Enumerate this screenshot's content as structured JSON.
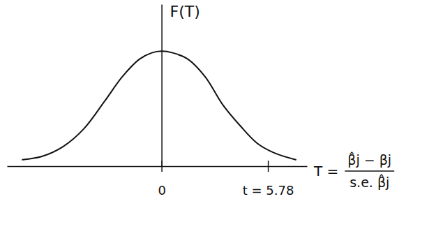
{
  "chart_data": {
    "type": "line",
    "y_label": "F(T)",
    "annotation": {
      "lhs": "T =",
      "numerator": "β̂j − βj",
      "denominator": "s.e. β̂j"
    },
    "x": [
      -7.56,
      -6.5,
      -5.36,
      -4.23,
      -3.1,
      -2.15,
      -1.21,
      -0.53,
      0,
      0.6,
      1.44,
      2.38,
      3.32,
      4.27,
      5.21,
      6.16,
      7.29
    ],
    "values": [
      0.04,
      0.06,
      0.12,
      0.23,
      0.4,
      0.55,
      0.66,
      0.7,
      0.71,
      0.7,
      0.66,
      0.55,
      0.38,
      0.25,
      0.14,
      0.08,
      0.04
    ],
    "color": "#111111",
    "xlim": [
      -8.4,
      7.9
    ],
    "xticks": [
      0,
      {
        "value": 5.78,
        "label": "t = 5.78"
      }
    ],
    "ylim": [
      0,
      1
    ],
    "yticks": [],
    "tick_labels": "x",
    "grid": false
  }
}
